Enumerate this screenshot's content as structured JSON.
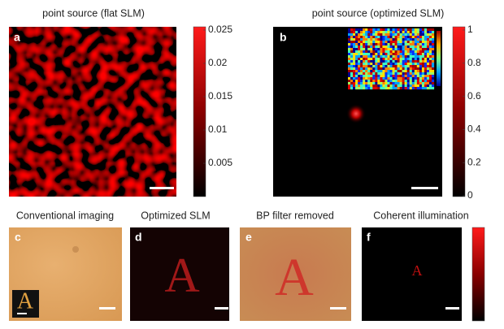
{
  "panels": [
    {
      "letter": "a",
      "title": "point source (flat SLM)",
      "colorbar_ticks": [
        0.025,
        0.02,
        0.015,
        0.01,
        0.005
      ]
    },
    {
      "letter": "b",
      "title": "point source (optimized SLM)",
      "colorbar_ticks": [
        1,
        0.8,
        0.6,
        0.4,
        0.2,
        0
      ]
    },
    {
      "letter": "c",
      "title": "Conventional imaging"
    },
    {
      "letter": "d",
      "title": "Optimized SLM"
    },
    {
      "letter": "e",
      "title": "BP filter removed"
    },
    {
      "letter": "f",
      "title": "Coherent illumination"
    }
  ]
}
